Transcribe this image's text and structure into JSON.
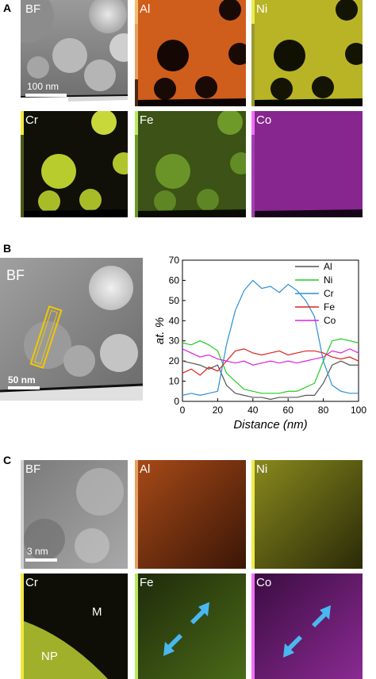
{
  "panel_a": {
    "letter": "A",
    "tiles": [
      {
        "label": "BF",
        "color": "#ffffff"
      },
      {
        "label": "Al",
        "color": "#e86a1e"
      },
      {
        "label": "Ni",
        "color": "#d4d22a"
      },
      {
        "label": "Cr",
        "color": "#dde83a"
      },
      {
        "label": "Fe",
        "color": "#8bc43a"
      },
      {
        "label": "Co",
        "color": "#c52fd0"
      }
    ],
    "scale_bar": "100 nm"
  },
  "panel_b": {
    "letter": "B",
    "bf_label": "BF",
    "scale_bar": "50 nm"
  },
  "panel_c": {
    "letter": "C",
    "tiles": [
      {
        "label": "BF"
      },
      {
        "label": "Al"
      },
      {
        "label": "Ni"
      },
      {
        "label": "Cr"
      },
      {
        "label": "Fe"
      },
      {
        "label": "Co"
      }
    ],
    "scale_bar": "3 nm",
    "region_m": "M",
    "region_np": "NP"
  },
  "chart_data": {
    "type": "line",
    "xlabel": "Distance (nm)",
    "ylabel": "at. %",
    "xlim": [
      0,
      100
    ],
    "ylim": [
      0,
      70
    ],
    "xticks": [
      0,
      20,
      40,
      60,
      80,
      100
    ],
    "yticks": [
      0,
      10,
      20,
      30,
      40,
      50,
      60,
      70
    ],
    "legend": "top-right",
    "x": [
      0,
      5,
      10,
      15,
      20,
      25,
      30,
      35,
      40,
      45,
      50,
      55,
      60,
      65,
      70,
      75,
      80,
      85,
      90,
      95,
      100
    ],
    "series": [
      {
        "name": "Al",
        "color": "#555555",
        "values": [
          20,
          19,
          18,
          16,
          18,
          8,
          4,
          3,
          2,
          2,
          1,
          2,
          2,
          2,
          3,
          3,
          9,
          18,
          20,
          18,
          18
        ]
      },
      {
        "name": "Ni",
        "color": "#22cc22",
        "values": [
          29,
          28,
          30,
          28,
          25,
          14,
          10,
          6,
          5,
          4,
          4,
          4,
          5,
          5,
          7,
          9,
          20,
          30,
          31,
          30,
          29
        ]
      },
      {
        "name": "Cr",
        "color": "#2b8fd6",
        "values": [
          3,
          4,
          3,
          4,
          5,
          28,
          45,
          55,
          60,
          56,
          57,
          54,
          58,
          55,
          50,
          42,
          20,
          8,
          5,
          4,
          4
        ]
      },
      {
        "name": "Fe",
        "color": "#e02020",
        "values": [
          14,
          16,
          13,
          17,
          15,
          20,
          25,
          26,
          24,
          23,
          24,
          25,
          23,
          24,
          25,
          25,
          24,
          22,
          21,
          22,
          20
        ]
      },
      {
        "name": "Co",
        "color": "#dd22dd",
        "values": [
          26,
          24,
          22,
          23,
          21,
          20,
          19,
          20,
          18,
          19,
          20,
          19,
          20,
          19,
          20,
          21,
          22,
          25,
          24,
          26,
          24
        ]
      }
    ]
  }
}
